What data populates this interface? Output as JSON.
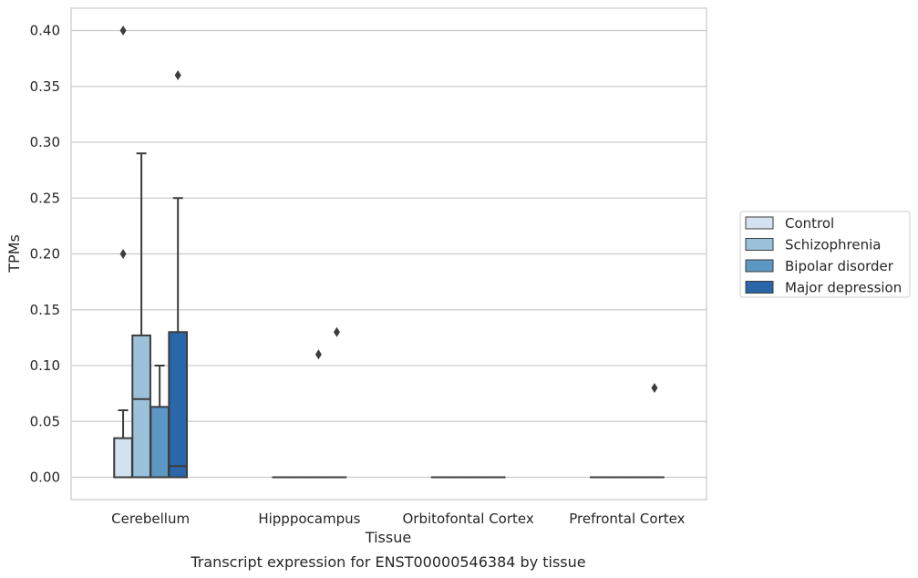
{
  "caption": "Transcript expression for ENST00000546384 by tissue",
  "chart_data": {
    "type": "box",
    "title": "",
    "xlabel": "Tissue",
    "ylabel": "TPMs",
    "ylim": [
      -0.02,
      0.42
    ],
    "yticks": [
      "0.00",
      "0.05",
      "0.10",
      "0.15",
      "0.20",
      "0.25",
      "0.30",
      "0.35",
      "0.40"
    ],
    "grid": true,
    "legend_position": "right",
    "categories": [
      "Cerebellum",
      "Hipppocampus",
      "Orbitofontal Cortex",
      "Prefrontal Cortex"
    ],
    "series": [
      {
        "name": "Control",
        "color": "#d3e1f0",
        "boxes": [
          {
            "q1": 0.0,
            "median": 0.0,
            "q3": 0.035,
            "whisker_low": 0.0,
            "whisker_high": 0.06,
            "outliers": [
              0.2,
              0.4
            ]
          },
          {
            "q1": 0.0,
            "median": 0.0,
            "q3": 0.0,
            "whisker_low": 0.0,
            "whisker_high": 0.0,
            "outliers": []
          },
          {
            "q1": 0.0,
            "median": 0.0,
            "q3": 0.0,
            "whisker_low": 0.0,
            "whisker_high": 0.0,
            "outliers": []
          },
          {
            "q1": 0.0,
            "median": 0.0,
            "q3": 0.0,
            "whisker_low": 0.0,
            "whisker_high": 0.0,
            "outliers": []
          }
        ]
      },
      {
        "name": "Schizophrenia",
        "color": "#9cc1db",
        "boxes": [
          {
            "q1": 0.0,
            "median": 0.07,
            "q3": 0.127,
            "whisker_low": 0.0,
            "whisker_high": 0.29,
            "outliers": []
          },
          {
            "q1": 0.0,
            "median": 0.0,
            "q3": 0.0,
            "whisker_low": 0.0,
            "whisker_high": 0.0,
            "outliers": []
          },
          {
            "q1": 0.0,
            "median": 0.0,
            "q3": 0.0,
            "whisker_low": 0.0,
            "whisker_high": 0.0,
            "outliers": []
          },
          {
            "q1": 0.0,
            "median": 0.0,
            "q3": 0.0,
            "whisker_low": 0.0,
            "whisker_high": 0.0,
            "outliers": []
          }
        ]
      },
      {
        "name": "Bipolar disorder",
        "color": "#5d97c3",
        "boxes": [
          {
            "q1": 0.0,
            "median": 0.0,
            "q3": 0.063,
            "whisker_low": 0.0,
            "whisker_high": 0.1,
            "outliers": []
          },
          {
            "q1": 0.0,
            "median": 0.0,
            "q3": 0.0,
            "whisker_low": 0.0,
            "whisker_high": 0.0,
            "outliers": [
              0.11
            ]
          },
          {
            "q1": 0.0,
            "median": 0.0,
            "q3": 0.0,
            "whisker_low": 0.0,
            "whisker_high": 0.0,
            "outliers": []
          },
          {
            "q1": 0.0,
            "median": 0.0,
            "q3": 0.0,
            "whisker_low": 0.0,
            "whisker_high": 0.0,
            "outliers": []
          }
        ]
      },
      {
        "name": "Major depression",
        "color": "#2a67a9",
        "boxes": [
          {
            "q1": 0.0,
            "median": 0.01,
            "q3": 0.13,
            "whisker_low": 0.0,
            "whisker_high": 0.25,
            "outliers": [
              0.36
            ]
          },
          {
            "q1": 0.0,
            "median": 0.0,
            "q3": 0.0,
            "whisker_low": 0.0,
            "whisker_high": 0.0,
            "outliers": [
              0.13
            ]
          },
          {
            "q1": 0.0,
            "median": 0.0,
            "q3": 0.0,
            "whisker_low": 0.0,
            "whisker_high": 0.0,
            "outliers": []
          },
          {
            "q1": 0.0,
            "median": 0.0,
            "q3": 0.0,
            "whisker_low": 0.0,
            "whisker_high": 0.0,
            "outliers": [
              0.08
            ]
          }
        ]
      }
    ]
  }
}
